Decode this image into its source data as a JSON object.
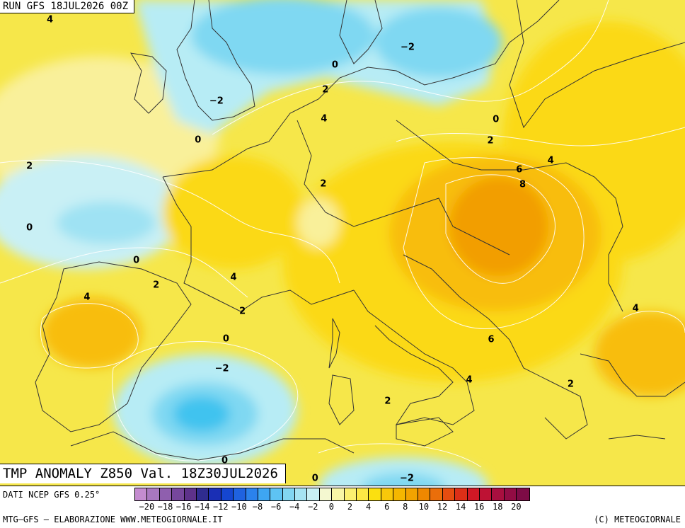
{
  "header": {
    "run": "RUN GFS 18JUL2026 00Z"
  },
  "map": {
    "title": "TMP ANOMALY Z850 Val. 18Z30JUL2026",
    "contour_labels": [
      {
        "text": "4",
        "fx": 0.073,
        "fy": 0.041
      },
      {
        "text": "−2",
        "fx": 0.595,
        "fy": 0.098
      },
      {
        "text": "0",
        "fx": 0.489,
        "fy": 0.134
      },
      {
        "text": "2",
        "fx": 0.475,
        "fy": 0.185
      },
      {
        "text": "−2",
        "fx": 0.316,
        "fy": 0.208
      },
      {
        "text": "4",
        "fx": 0.473,
        "fy": 0.245
      },
      {
        "text": "0",
        "fx": 0.724,
        "fy": 0.246
      },
      {
        "text": "0",
        "fx": 0.289,
        "fy": 0.288
      },
      {
        "text": "2",
        "fx": 0.716,
        "fy": 0.29
      },
      {
        "text": "4",
        "fx": 0.804,
        "fy": 0.331
      },
      {
        "text": "2",
        "fx": 0.043,
        "fy": 0.342
      },
      {
        "text": "6",
        "fx": 0.758,
        "fy": 0.35
      },
      {
        "text": "2",
        "fx": 0.472,
        "fy": 0.379
      },
      {
        "text": "8",
        "fx": 0.763,
        "fy": 0.38
      },
      {
        "text": "0",
        "fx": 0.043,
        "fy": 0.469
      },
      {
        "text": "0",
        "fx": 0.199,
        "fy": 0.536
      },
      {
        "text": "4",
        "fx": 0.341,
        "fy": 0.572
      },
      {
        "text": "2",
        "fx": 0.228,
        "fy": 0.588
      },
      {
        "text": "4",
        "fx": 0.127,
        "fy": 0.612
      },
      {
        "text": "2",
        "fx": 0.354,
        "fy": 0.641
      },
      {
        "text": "4",
        "fx": 0.928,
        "fy": 0.635
      },
      {
        "text": "0",
        "fx": 0.33,
        "fy": 0.698
      },
      {
        "text": "6",
        "fx": 0.717,
        "fy": 0.7
      },
      {
        "text": "−2",
        "fx": 0.324,
        "fy": 0.759
      },
      {
        "text": "4",
        "fx": 0.685,
        "fy": 0.783
      },
      {
        "text": "2",
        "fx": 0.833,
        "fy": 0.791
      },
      {
        "text": "2",
        "fx": 0.566,
        "fy": 0.827
      },
      {
        "text": "0",
        "fx": 0.328,
        "fy": 0.949
      },
      {
        "text": "0",
        "fx": 0.46,
        "fy": 0.986
      },
      {
        "text": "−2",
        "fx": 0.594,
        "fy": 0.986
      }
    ]
  },
  "legend": {
    "source": "DATI NCEP GFS 0.25°",
    "ticks": [
      "−20",
      "−18",
      "−16",
      "−14",
      "−12",
      "−10",
      "−8",
      "−6",
      "−4",
      "−2",
      "0",
      "2",
      "4",
      "6",
      "8",
      "10",
      "12",
      "14",
      "16",
      "18",
      "20"
    ],
    "colors": [
      "#c48ccf",
      "#a978bf",
      "#8f5fae",
      "#76479c",
      "#5e328a",
      "#2f2c8f",
      "#1a2fb5",
      "#1546d0",
      "#1f62e0",
      "#2b82ec",
      "#3ea6f2",
      "#5ec3f3",
      "#82d6f2",
      "#a6e4f3",
      "#c9f0f5",
      "#f4f8d0",
      "#f9f6a6",
      "#fcf070",
      "#fde845",
      "#fbe010",
      "#f8c80a",
      "#f5b700",
      "#f2a300",
      "#ee8800",
      "#ea6e0a",
      "#e54d10",
      "#dc2f17",
      "#d01825",
      "#be1234",
      "#a80f3f",
      "#920c44",
      "#7d0b46"
    ]
  },
  "footer": {
    "left": "MTG–GFS – ELABORAZIONE WWW.METEOGIORNALE.IT",
    "right": "(C) METEOGIORNALE"
  },
  "field_colors": {
    "sea": "#f6e74a",
    "cold2": "#b7ecf5",
    "cold4": "#7fd8f2",
    "cold6": "#3fc3ef",
    "warm0": "#f9f09a",
    "warm4": "#fbd915",
    "warm6": "#f8bd09",
    "warm8": "#f29e06",
    "coast": "#333333",
    "contour": "#ffffff"
  }
}
